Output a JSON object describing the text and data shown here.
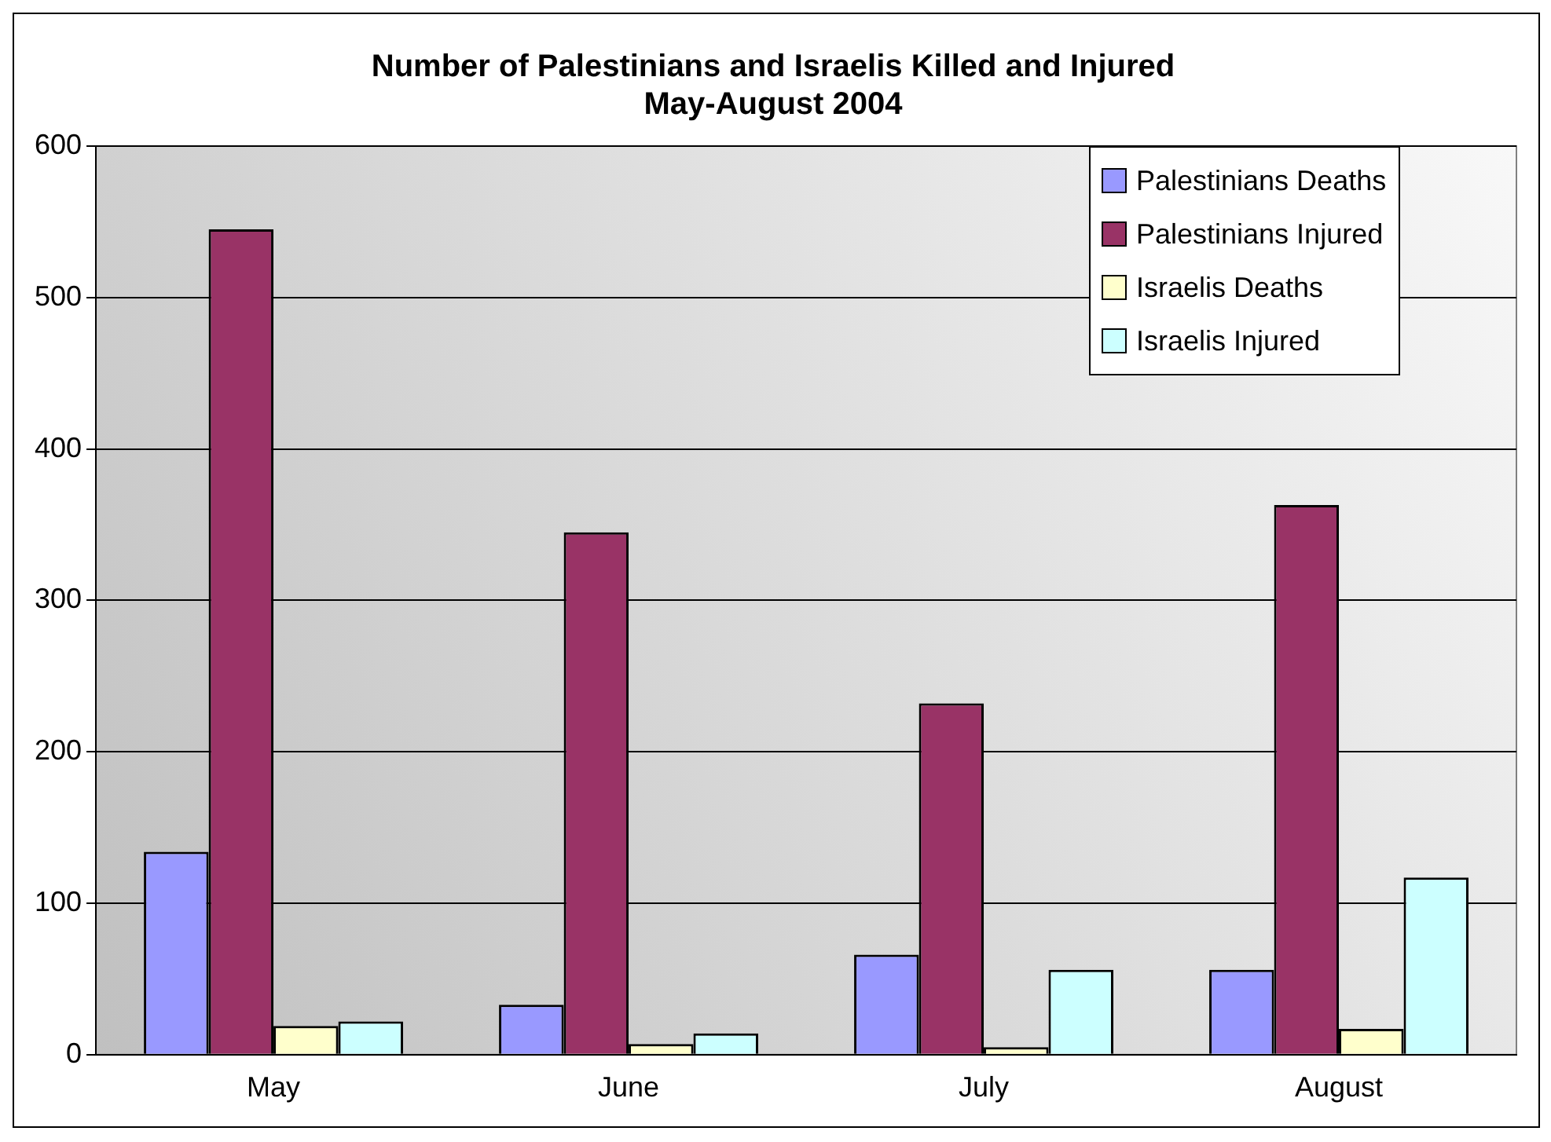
{
  "chart_data": {
    "type": "bar",
    "title": [
      "Number of Palestinians and Israelis Killed and Injured",
      "May-August 2004"
    ],
    "categories": [
      "May",
      "June",
      "July",
      "August"
    ],
    "series": [
      {
        "name": "Palestinians Deaths",
        "color": "#9999ff",
        "values": [
          134,
          33,
          66,
          56
        ]
      },
      {
        "name": "Palestinians Injured",
        "color": "#993366",
        "values": [
          545,
          345,
          232,
          363
        ]
      },
      {
        "name": "Israelis Deaths",
        "color": "#ffffcc",
        "values": [
          19,
          7,
          5,
          17
        ]
      },
      {
        "name": "Israelis Injured",
        "color": "#ccffff",
        "values": [
          22,
          14,
          56,
          117
        ]
      }
    ],
    "ylim": [
      0,
      600
    ],
    "yticks": [
      0,
      100,
      200,
      300,
      400,
      500,
      600
    ],
    "grid": "y",
    "legend": "top right"
  }
}
